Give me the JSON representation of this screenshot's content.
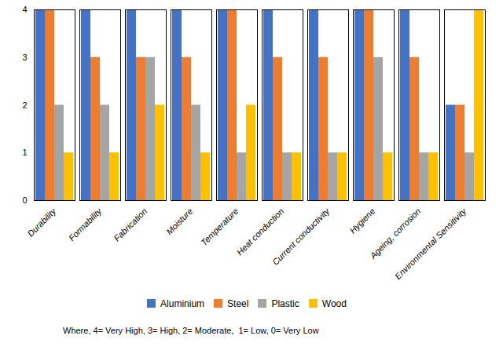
{
  "chart_data": {
    "type": "bar",
    "categories": [
      "Durability",
      "Formability",
      "Fabrication",
      "Moisture",
      "Temperature",
      "Heat conduction",
      "Current conductivity",
      "Hygiene",
      "Ageing, corrosion",
      "Environmental Sensitivity"
    ],
    "series": [
      {
        "name": "Aluminium",
        "color": "#4472C4",
        "values": [
          4,
          4,
          4,
          4,
          4,
          4,
          4,
          4,
          4,
          2
        ]
      },
      {
        "name": "Steel",
        "color": "#ED7D31",
        "values": [
          4,
          3,
          3,
          3,
          4,
          3,
          3,
          4,
          3,
          2
        ]
      },
      {
        "name": "Plastic",
        "color": "#A5A5A5",
        "values": [
          2,
          2,
          3,
          2,
          1,
          1,
          1,
          3,
          1,
          1
        ]
      },
      {
        "name": "Wood",
        "color": "#FFC000",
        "values": [
          1,
          1,
          2,
          1,
          2,
          1,
          1,
          1,
          1,
          4
        ]
      }
    ],
    "ylim": [
      0,
      4
    ],
    "yticks": [
      0,
      1,
      2,
      3,
      4
    ],
    "grid": false,
    "legend": "bottom",
    "annotations": [
      "Where, 4= Very High, 3= High, 2= Moderate,  1= Low, 0= Very Low"
    ]
  }
}
